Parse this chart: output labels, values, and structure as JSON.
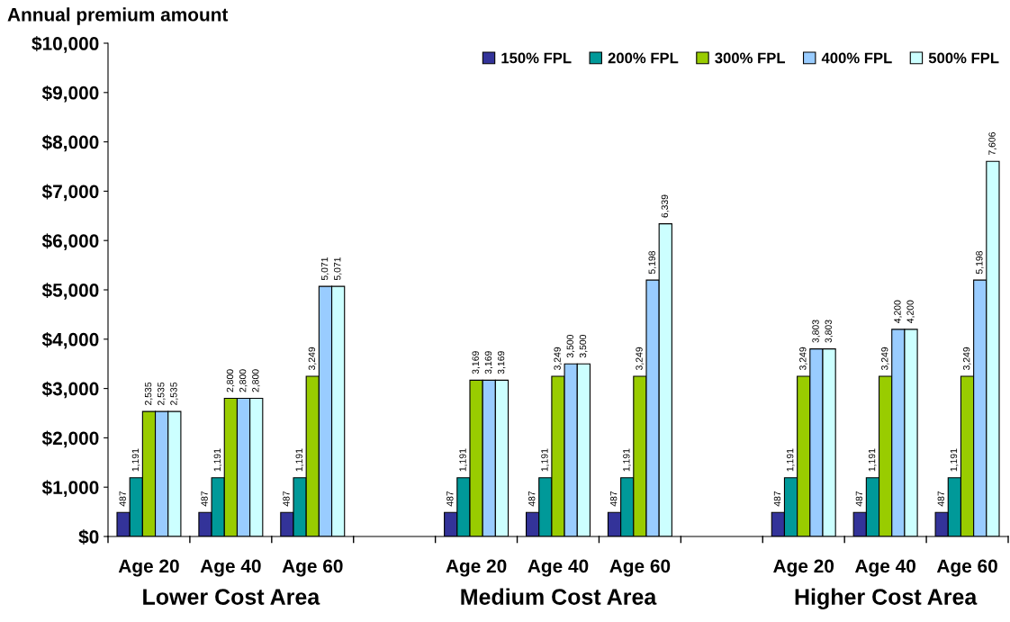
{
  "chart_data": {
    "type": "bar",
    "ylabel": "Annual premium amount",
    "categories": [
      "Age 20",
      "Age 40",
      "Age 60",
      null,
      "Age 20",
      "Age 40",
      "Age 60",
      null,
      "Age 20",
      "Age 40",
      "Age 60"
    ],
    "annotations": [
      "Lower Cost Area",
      "Medium Cost Area",
      "Higher Cost Area"
    ],
    "series": [
      {
        "name": "150% FPL",
        "color": "#333399",
        "values": [
          487,
          487,
          487,
          null,
          487,
          487,
          487,
          null,
          487,
          487,
          487
        ],
        "value_labels": [
          "487",
          "487",
          "487",
          null,
          "487",
          "487",
          "487",
          null,
          "487",
          "487",
          "487"
        ]
      },
      {
        "name": "200% FPL",
        "color": "#009999",
        "values": [
          1191,
          1191,
          1191,
          null,
          1191,
          1191,
          1191,
          null,
          1191,
          1191,
          1191
        ],
        "value_labels": [
          "1,191",
          "1,191",
          "1,191",
          null,
          "1,191",
          "1,191",
          "1,191",
          null,
          "1,191",
          "1,191",
          "1,191"
        ]
      },
      {
        "name": "300% FPL",
        "color": "#99cc00",
        "values": [
          2535,
          2800,
          3249,
          null,
          3169,
          3249,
          3249,
          null,
          3249,
          3249,
          3249
        ],
        "value_labels": [
          "2,535",
          "2,800",
          "3,249",
          null,
          "3,169",
          "3,249",
          "3,249",
          null,
          "3,249",
          "3,249",
          "3,249"
        ]
      },
      {
        "name": "400% FPL",
        "color": "#99ccff",
        "values": [
          2535,
          2800,
          5071,
          null,
          3169,
          3500,
          5198,
          null,
          3803,
          4200,
          5198
        ],
        "value_labels": [
          "2,535",
          "2,800",
          "5,071",
          null,
          "3,169",
          "3,500",
          "5,198",
          null,
          "3,803",
          "4,200",
          "5,198"
        ]
      },
      {
        "name": "500% FPL",
        "color": "#ccffff",
        "values": [
          2535,
          2800,
          5071,
          null,
          3169,
          3500,
          6339,
          null,
          3803,
          4200,
          7606
        ],
        "value_labels": [
          "2,535",
          "2,800",
          "5,071",
          null,
          "3,169",
          "3,500",
          "6,339",
          null,
          "3,803",
          "4,200",
          "7,606"
        ]
      }
    ],
    "ylim": [
      0,
      10000
    ],
    "yticks": [
      {
        "value": 0,
        "label": "$0"
      },
      {
        "value": 1000,
        "label": "$1,000"
      },
      {
        "value": 2000,
        "label": "$2,000"
      },
      {
        "value": 3000,
        "label": "$3,000"
      },
      {
        "value": 4000,
        "label": "$4,000"
      },
      {
        "value": 5000,
        "label": "$5,000"
      },
      {
        "value": 6000,
        "label": "$6,000"
      },
      {
        "value": 7000,
        "label": "$7,000"
      },
      {
        "value": 8000,
        "label": "$8,000"
      },
      {
        "value": 9000,
        "label": "$9,000"
      },
      {
        "value": 10000,
        "label": "$10,000"
      }
    ],
    "grid": false,
    "legend": "top right"
  }
}
